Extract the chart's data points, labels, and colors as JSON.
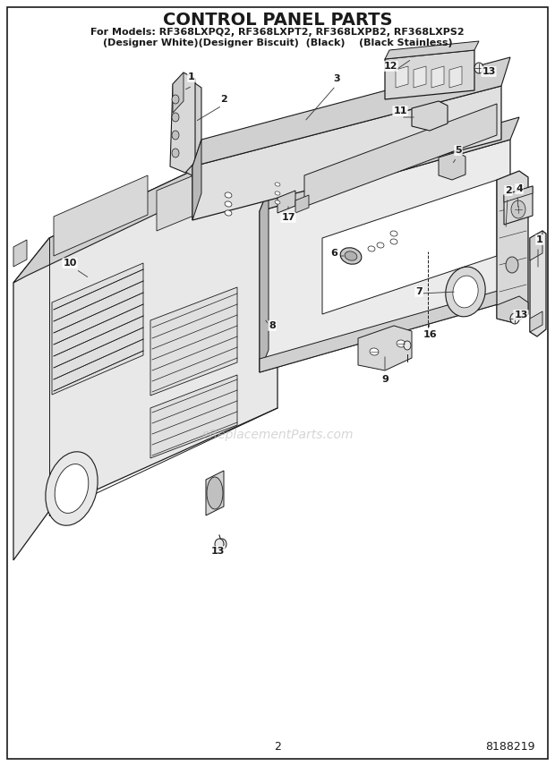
{
  "title": "CONTROL PANEL PARTS",
  "subtitle_line1": "For Models: RF368LXPQ2, RF368LXPT2, RF368LXPB2, RF368LXPS2",
  "subtitle_line2": "(Designer White)(Designer Biscuit)  (Black)    (Black Stainless)",
  "page_number": "2",
  "part_number": "8188219",
  "watermark": "eReplacementParts.com",
  "bg": "#ffffff",
  "dark": "#1a1a1a",
  "mid": "#888888",
  "light_gray": "#cccccc",
  "panel_face": "#e8e8e8",
  "panel_top": "#d0d0d0",
  "panel_side": "#b8b8b8",
  "white": "#ffffff"
}
